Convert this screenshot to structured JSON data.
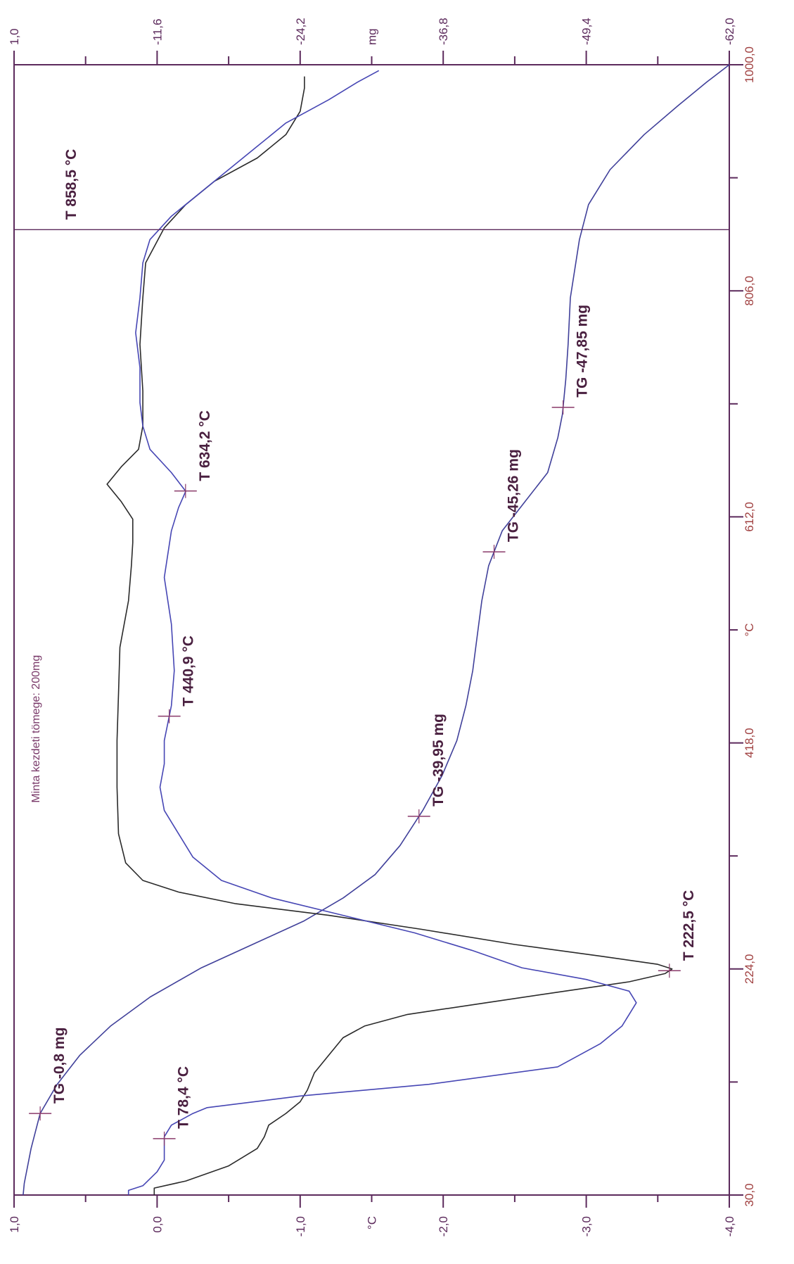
{
  "chart_data": {
    "type": "line",
    "orientation": "rotated-90-clockwise",
    "temperature_axis": {
      "unit_label": "°C",
      "range": [
        30,
        1000
      ],
      "tick_labels": [
        "30,0",
        "224,0",
        "418,0",
        "612,0",
        "806,0",
        "1000,0"
      ],
      "tick_values": [
        30,
        224,
        418,
        612,
        806,
        1000
      ],
      "minor_ticks": [
        127,
        321,
        515,
        709,
        903
      ]
    },
    "mass_axis": {
      "unit_label": "mg",
      "range": [
        1.0,
        -62.0
      ],
      "tick_labels": [
        "1,0",
        "-11,6",
        "-24,2",
        "-36,8",
        "-49,4",
        "-62,0"
      ],
      "tick_values": [
        1.0,
        -11.6,
        -24.2,
        -36.8,
        -49.4,
        -62.0
      ],
      "minor_ticks": [
        -5.3,
        -17.9,
        -30.5,
        -43.1,
        -55.7
      ]
    },
    "dta_axis": {
      "unit_label": "°C",
      "range": [
        1.0,
        -4.0
      ],
      "tick_labels": [
        "1,0",
        "0,0",
        "-1,0",
        "-2,0",
        "-3,0",
        "-4,0"
      ],
      "tick_values": [
        1.0,
        0.0,
        -1.0,
        -2.0,
        -3.0,
        -4.0
      ],
      "minor_ticks": [
        0.5,
        -0.5,
        -1.5,
        -2.5,
        -3.5
      ]
    },
    "series": [
      {
        "key": "tg",
        "axis": "mass",
        "color": "#40409a",
        "points": [
          [
            30,
            0.2
          ],
          [
            40,
            0.1
          ],
          [
            70,
            -0.5
          ],
          [
            100,
            -1.3
          ],
          [
            125,
            -2.8
          ],
          [
            150,
            -4.8
          ],
          [
            175,
            -7.5
          ],
          [
            200,
            -11.0
          ],
          [
            225,
            -15.5
          ],
          [
            245,
            -20.0
          ],
          [
            265,
            -24.5
          ],
          [
            285,
            -28.0
          ],
          [
            305,
            -30.8
          ],
          [
            330,
            -33.0
          ],
          [
            360,
            -35.0
          ],
          [
            390,
            -36.7
          ],
          [
            420,
            -38.0
          ],
          [
            450,
            -38.8
          ],
          [
            480,
            -39.4
          ],
          [
            510,
            -39.8
          ],
          [
            540,
            -40.2
          ],
          [
            570,
            -40.8
          ],
          [
            600,
            -42.0
          ],
          [
            625,
            -44.0
          ],
          [
            650,
            -46.0
          ],
          [
            680,
            -46.9
          ],
          [
            700,
            -47.3
          ],
          [
            730,
            -47.6
          ],
          [
            760,
            -47.8
          ],
          [
            800,
            -48.0
          ],
          [
            850,
            -48.8
          ],
          [
            880,
            -49.6
          ],
          [
            910,
            -51.5
          ],
          [
            940,
            -54.5
          ],
          [
            965,
            -57.5
          ],
          [
            985,
            -60.0
          ],
          [
            1000,
            -62.0
          ]
        ]
      },
      {
        "key": "dta",
        "axis": "dta",
        "color": "#2a2a2a",
        "points": [
          [
            30,
            0.02
          ],
          [
            36,
            0.02
          ],
          [
            42,
            -0.2
          ],
          [
            55,
            -0.5
          ],
          [
            70,
            -0.7
          ],
          [
            80,
            -0.75
          ],
          [
            90,
            -0.78
          ],
          [
            100,
            -0.9
          ],
          [
            110,
            -1.0
          ],
          [
            120,
            -1.05
          ],
          [
            135,
            -1.1
          ],
          [
            150,
            -1.2
          ],
          [
            165,
            -1.3
          ],
          [
            175,
            -1.45
          ],
          [
            185,
            -1.75
          ],
          [
            195,
            -2.3
          ],
          [
            205,
            -2.85
          ],
          [
            213,
            -3.3
          ],
          [
            220,
            -3.55
          ],
          [
            224,
            -3.6
          ],
          [
            228,
            -3.5
          ],
          [
            235,
            -3.1
          ],
          [
            245,
            -2.5
          ],
          [
            258,
            -1.85
          ],
          [
            270,
            -1.2
          ],
          [
            280,
            -0.55
          ],
          [
            290,
            -0.15
          ],
          [
            300,
            0.1
          ],
          [
            315,
            0.22
          ],
          [
            340,
            0.27
          ],
          [
            380,
            0.28
          ],
          [
            420,
            0.28
          ],
          [
            460,
            0.27
          ],
          [
            500,
            0.26
          ],
          [
            540,
            0.2
          ],
          [
            570,
            0.18
          ],
          [
            590,
            0.17
          ],
          [
            610,
            0.17
          ],
          [
            625,
            0.25
          ],
          [
            640,
            0.35
          ],
          [
            655,
            0.25
          ],
          [
            670,
            0.13
          ],
          [
            690,
            0.1
          ],
          [
            720,
            0.1
          ],
          [
            760,
            0.12
          ],
          [
            800,
            0.1
          ],
          [
            830,
            0.08
          ],
          [
            860,
            -0.05
          ],
          [
            880,
            -0.2
          ],
          [
            900,
            -0.4
          ],
          [
            920,
            -0.7
          ],
          [
            940,
            -0.9
          ],
          [
            960,
            -1.0
          ],
          [
            980,
            -1.03
          ],
          [
            990,
            -1.03
          ]
        ]
      },
      {
        "key": "dtg",
        "axis": "dta",
        "color": "#4646b4",
        "points": [
          [
            30,
            0.2
          ],
          [
            34,
            0.2
          ],
          [
            38,
            0.1
          ],
          [
            50,
            0.0
          ],
          [
            60,
            -0.05
          ],
          [
            70,
            -0.05
          ],
          [
            80,
            -0.05
          ],
          [
            90,
            -0.1
          ],
          [
            100,
            -0.25
          ],
          [
            105,
            -0.35
          ],
          [
            115,
            -1.0
          ],
          [
            125,
            -1.9
          ],
          [
            140,
            -2.8
          ],
          [
            160,
            -3.1
          ],
          [
            175,
            -3.25
          ],
          [
            185,
            -3.3
          ],
          [
            195,
            -3.35
          ],
          [
            205,
            -3.3
          ],
          [
            215,
            -3.0
          ],
          [
            225,
            -2.55
          ],
          [
            240,
            -2.2
          ],
          [
            255,
            -1.8
          ],
          [
            270,
            -1.3
          ],
          [
            285,
            -0.8
          ],
          [
            300,
            -0.45
          ],
          [
            320,
            -0.25
          ],
          [
            340,
            -0.15
          ],
          [
            360,
            -0.05
          ],
          [
            380,
            -0.02
          ],
          [
            400,
            -0.05
          ],
          [
            420,
            -0.05
          ],
          [
            450,
            -0.1
          ],
          [
            480,
            -0.12
          ],
          [
            520,
            -0.1
          ],
          [
            560,
            -0.05
          ],
          [
            600,
            -0.1
          ],
          [
            620,
            -0.15
          ],
          [
            634,
            -0.2
          ],
          [
            650,
            -0.1
          ],
          [
            670,
            0.05
          ],
          [
            690,
            0.1
          ],
          [
            710,
            0.12
          ],
          [
            740,
            0.12
          ],
          [
            770,
            0.15
          ],
          [
            800,
            0.12
          ],
          [
            830,
            0.1
          ],
          [
            850,
            0.05
          ],
          [
            870,
            -0.1
          ],
          [
            890,
            -0.3
          ],
          [
            910,
            -0.5
          ],
          [
            930,
            -0.7
          ],
          [
            950,
            -0.9
          ],
          [
            970,
            -1.2
          ],
          [
            985,
            -1.4
          ],
          [
            995,
            -1.55
          ]
        ]
      }
    ],
    "markers": [
      {
        "series": "dtg",
        "x": 78.4,
        "label": "T 78,4 °C"
      },
      {
        "series": "dta",
        "x": 222.5,
        "label": "T 222,5 °C"
      },
      {
        "series": "dtg",
        "x": 440.9,
        "label": "T 440,9 °C"
      },
      {
        "series": "dtg",
        "x": 634.2,
        "label": "T 634,2 °C"
      },
      {
        "series": "tg",
        "x": 100,
        "label": "TG -0,8 mg"
      },
      {
        "series": "tg",
        "x": 355,
        "label": "TG -39,95 mg"
      },
      {
        "series": "tg",
        "x": 582,
        "label": "TG -45,26 mg"
      },
      {
        "series": "tg",
        "x": 706,
        "label": "TG -47,85 mg"
      }
    ],
    "cursor": {
      "x": 858.5,
      "label": "T 858,5 °C"
    },
    "annotation": "Minta kezdeti tömege: 200mg",
    "grid": false,
    "legend": "none"
  }
}
